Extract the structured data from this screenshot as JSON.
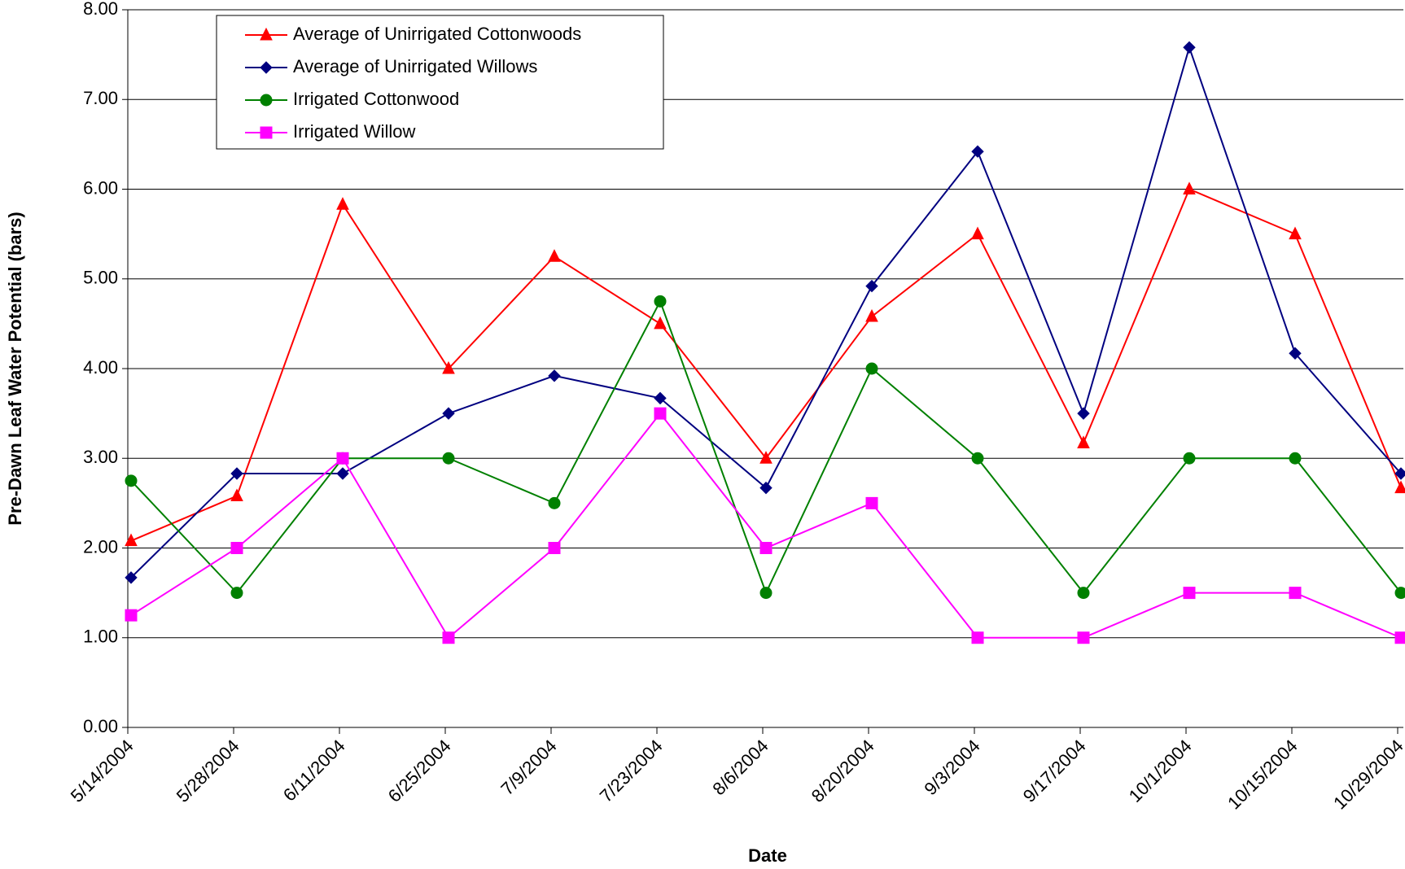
{
  "chart_data": {
    "type": "line",
    "x_label": "Date",
    "y_label": "Pre-Dawn Leaf Water Potential (bars)",
    "categories": [
      "5/14/2004",
      "5/28/2004",
      "6/11/2004",
      "6/25/2004",
      "7/9/2004",
      "7/23/2004",
      "8/6/2004",
      "8/20/2004",
      "9/3/2004",
      "9/17/2004",
      "10/1/2004",
      "10/15/2004",
      "10/29/2004"
    ],
    "series": [
      {
        "name": "Average of Unirrigated Cottonwoods",
        "color": "#ff0000",
        "marker": "triangle",
        "values": [
          2.08,
          2.58,
          5.83,
          4.0,
          5.25,
          4.5,
          3.0,
          4.58,
          5.5,
          3.17,
          6.0,
          5.5,
          2.67
        ]
      },
      {
        "name": "Average of Unirrigated Willows",
        "color": "#000080",
        "marker": "diamond",
        "values": [
          1.67,
          2.83,
          2.83,
          3.5,
          3.92,
          3.67,
          2.67,
          4.92,
          6.42,
          3.5,
          7.58,
          4.17,
          2.83
        ]
      },
      {
        "name": "Irrigated Cottonwood",
        "color": "#008000",
        "marker": "circle",
        "values": [
          2.75,
          1.5,
          3.0,
          3.0,
          2.5,
          4.75,
          1.5,
          4.0,
          3.0,
          1.5,
          3.0,
          3.0,
          1.5
        ]
      },
      {
        "name": "Irrigated Willow",
        "color": "#ff00ff",
        "marker": "square",
        "values": [
          1.25,
          2.0,
          3.0,
          1.0,
          2.0,
          3.5,
          2.0,
          2.5,
          1.0,
          1.0,
          1.5,
          1.5,
          1.0
        ]
      }
    ],
    "ylim": [
      0,
      8
    ],
    "yticks": [
      {
        "value": 0,
        "label": "0.00"
      },
      {
        "value": 1,
        "label": "1.00"
      },
      {
        "value": 2,
        "label": "2.00"
      },
      {
        "value": 3,
        "label": "3.00"
      },
      {
        "value": 4,
        "label": "4.00"
      },
      {
        "value": 5,
        "label": "5.00"
      },
      {
        "value": 6,
        "label": "6.00"
      },
      {
        "value": 7,
        "label": "7.00"
      },
      {
        "value": 8,
        "label": "8.00"
      }
    ],
    "grid": true,
    "legend": "top-left"
  }
}
